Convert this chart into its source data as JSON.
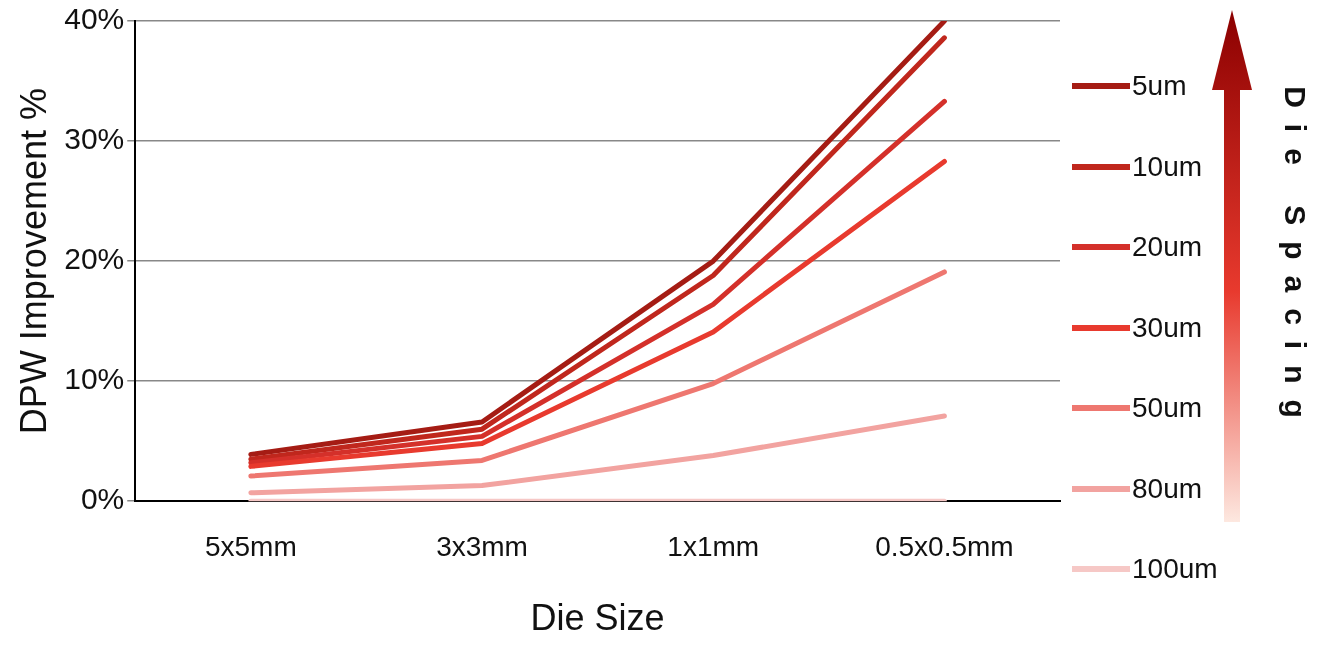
{
  "chart_data": {
    "type": "line",
    "xlabel": "Die Size",
    "ylabel": "DPW Improvement %",
    "legend_title": "Die Spacing",
    "legend": "right",
    "categories": [
      "5x5mm",
      "3x3mm",
      "1x1mm",
      "0.5x0.5mm"
    ],
    "series": [
      {
        "name": "5um",
        "color": "#a51c14",
        "values": [
          3.9,
          6.6,
          20,
          40
        ]
      },
      {
        "name": "10um",
        "color": "#c0271d",
        "values": [
          3.5,
          6.0,
          18.8,
          38.6
        ]
      },
      {
        "name": "20um",
        "color": "#d4302a",
        "values": [
          3.2,
          5.4,
          16.4,
          33.3
        ]
      },
      {
        "name": "30um",
        "color": "#e83a2e",
        "values": [
          2.9,
          4.8,
          14.1,
          28.3
        ]
      },
      {
        "name": "50um",
        "color": "#ee7770",
        "values": [
          2.1,
          3.4,
          9.8,
          19.1
        ]
      },
      {
        "name": "80um",
        "color": "#f2a3a0",
        "values": [
          0.7,
          1.3,
          3.8,
          7.1
        ]
      },
      {
        "name": "100um",
        "color": "#f6c8c6",
        "values": [
          0,
          0,
          0,
          0
        ]
      }
    ],
    "ylim": [
      0,
      40
    ],
    "yticks": [
      {
        "value": 0,
        "label": "0%"
      },
      {
        "value": 10,
        "label": "10%"
      },
      {
        "value": 20,
        "label": "20%"
      },
      {
        "value": 30,
        "label": "30%"
      },
      {
        "value": 40,
        "label": "40%"
      }
    ],
    "grid": "y",
    "marker": "none",
    "line_style": "solid"
  }
}
